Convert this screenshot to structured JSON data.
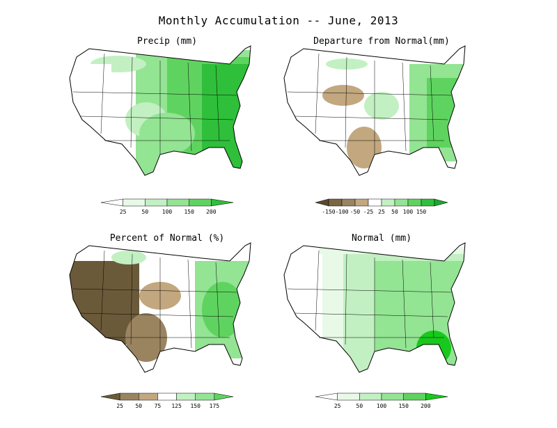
{
  "title": "Monthly Accumulation -- June, 2013",
  "palette": {
    "green_1": "#e8f9e8",
    "green_2": "#c2f0c2",
    "green_3": "#93e493",
    "green_4": "#5fd35f",
    "green_5": "#2fbf3a",
    "brown_1": "#6b5a3a",
    "brown_2": "#8e7a52",
    "brown_3": "#b59c74",
    "brown_4": "#d9c3a0"
  },
  "panels": [
    {
      "id": "precip",
      "title": "Precip (mm)",
      "legend": {
        "type": "sequential-green",
        "colors": [
          "#ffffff",
          "#e8f9e8",
          "#c2f0c2",
          "#93e493",
          "#5fd35f",
          "#2fbf3a"
        ],
        "labels": [
          "25",
          "50",
          "100",
          "150",
          "200"
        ]
      }
    },
    {
      "id": "departure",
      "title": "Departure from Normal(mm)",
      "legend": {
        "type": "diverging-brown-green",
        "colors": [
          "#5a4a2e",
          "#7a6642",
          "#9a8460",
          "#c2a77f",
          "#ffffff",
          "#c2f0c2",
          "#93e493",
          "#5fd35f",
          "#2fbf3a",
          "#1aa830"
        ],
        "labels": [
          "-150",
          "-100",
          "-50",
          "-25",
          "25",
          "50",
          "100",
          "150"
        ]
      }
    },
    {
      "id": "percent",
      "title": "Percent of Normal (%)",
      "legend": {
        "type": "diverging-brown-green",
        "colors": [
          "#6b5a3a",
          "#9a8460",
          "#c2a77f",
          "#ffffff",
          "#c2f0c2",
          "#93e493",
          "#5fd35f"
        ],
        "labels": [
          "25",
          "50",
          "75",
          "125",
          "150",
          "175"
        ]
      }
    },
    {
      "id": "normal",
      "title": "Normal (mm)",
      "legend": {
        "type": "sequential-green",
        "colors": [
          "#ffffff",
          "#e8f9e8",
          "#c2f0c2",
          "#93e493",
          "#5fd35f",
          "#19c81d"
        ],
        "labels": [
          "25",
          "50",
          "100",
          "150",
          "200"
        ]
      }
    }
  ]
}
